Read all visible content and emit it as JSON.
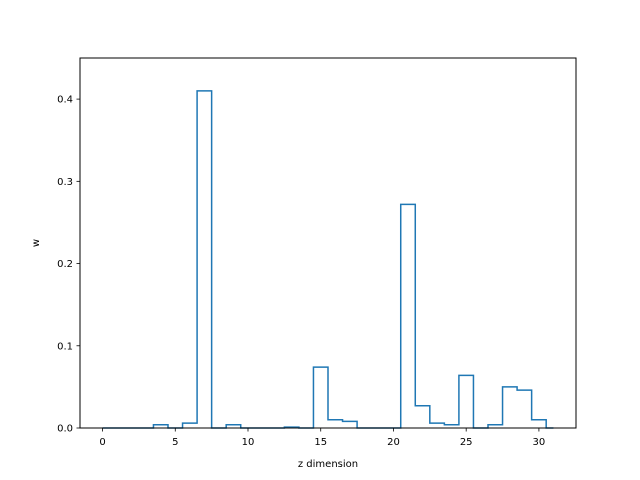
{
  "chart_data": {
    "type": "step",
    "title": "",
    "xlabel": "z dimension",
    "ylabel": "w",
    "xlim": [
      -1.55,
      32.55
    ],
    "ylim": [
      0,
      0.45
    ],
    "xticks": [
      0,
      5,
      10,
      15,
      20,
      25,
      30
    ],
    "xtick_labels": [
      "0",
      "5",
      "10",
      "15",
      "20",
      "25",
      "30"
    ],
    "yticks": [
      0.0,
      0.1,
      0.2,
      0.3,
      0.4
    ],
    "ytick_labels": [
      "0.0",
      "0.1",
      "0.2",
      "0.3",
      "0.4"
    ],
    "grid": false,
    "color": "#1f77b4",
    "bins": [
      0,
      1,
      2,
      3,
      4,
      5,
      6,
      7,
      8,
      9,
      10,
      11,
      12,
      13,
      14,
      15,
      16,
      17,
      18,
      19,
      20,
      21,
      22,
      23,
      24,
      25,
      26,
      27,
      28,
      29,
      30,
      31
    ],
    "values": [
      0.0,
      0.0,
      0.0,
      0.0,
      0.004,
      0.0,
      0.006,
      0.41,
      0.0,
      0.004,
      0.0,
      0.0,
      0.0,
      0.001,
      0.0,
      0.074,
      0.01,
      0.008,
      0.0,
      0.0,
      0.0,
      0.272,
      0.027,
      0.006,
      0.004,
      0.064,
      0.0,
      0.004,
      0.05,
      0.046,
      0.01,
      0.0
    ]
  }
}
